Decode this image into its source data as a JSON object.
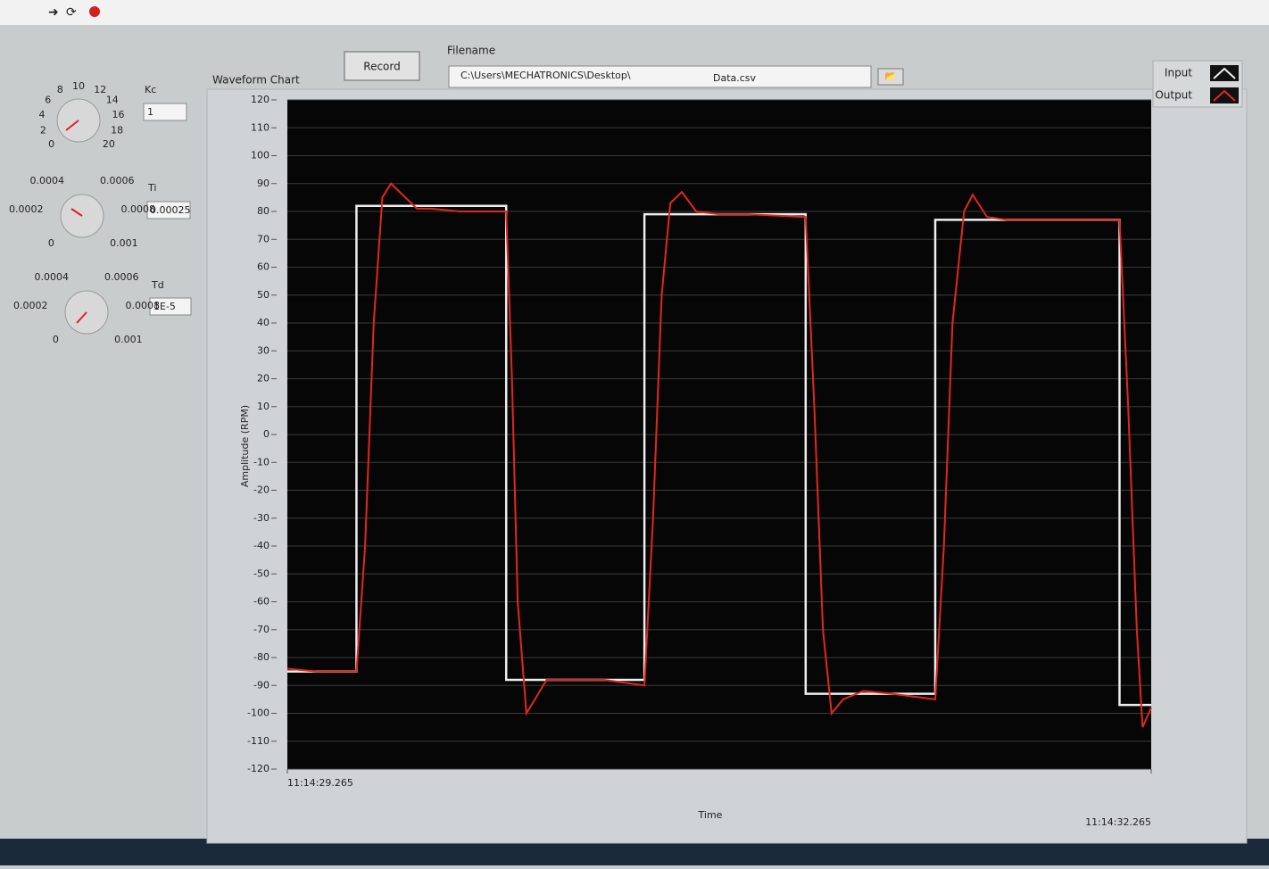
{
  "controls": {
    "kc": {
      "label": "Kc",
      "value": "1",
      "scale": [
        "0",
        "2",
        "4",
        "6",
        "8",
        "10",
        "12",
        "14",
        "16",
        "18",
        "20"
      ]
    },
    "ti": {
      "label": "Ti",
      "value": "0.00025",
      "scale": [
        "0",
        "0.0002",
        "0.0004",
        "0.0006",
        "0.0008",
        "0.001"
      ]
    },
    "td": {
      "label": "Td",
      "value": "1E-5",
      "scale": [
        "0",
        "0.0002",
        "0.0004",
        "0.0006",
        "0.0008",
        "0.001"
      ]
    },
    "record_button": "Record",
    "filename_label": "Filename",
    "filename_path": "C:\\Users\\MECHATRONICS\\Desktop\\",
    "filename_file": "Data.csv"
  },
  "chart_data": {
    "type": "line",
    "title": "Waveform Chart",
    "y_label": "Amplitude (RPM)",
    "x_label": "Time",
    "ylim": [
      -120,
      120
    ],
    "yticks": [
      120,
      110,
      100,
      90,
      80,
      70,
      60,
      50,
      40,
      30,
      20,
      10,
      0,
      -10,
      -20,
      -30,
      -40,
      -50,
      -60,
      -70,
      -80,
      -90,
      -100,
      -110,
      -120
    ],
    "xlim": [
      0,
      3
    ],
    "xticks": [
      {
        "value": 0,
        "label": "11:14:29.265"
      },
      {
        "value": 3,
        "label": "11:14:32.265"
      }
    ],
    "grid": true,
    "legend": "top-right",
    "series": [
      {
        "name": "Input",
        "color": "#eeeeee",
        "x": [
          0,
          0.24,
          0.24,
          0.76,
          0.76,
          1.24,
          1.24,
          1.8,
          1.8,
          2.25,
          2.25,
          2.89,
          2.89,
          3.0
        ],
        "values": [
          -85,
          -85,
          82,
          82,
          -88,
          -88,
          79,
          79,
          -93,
          -93,
          77,
          77,
          -97,
          -97
        ]
      },
      {
        "name": "Output",
        "color": "#e0281e",
        "x": [
          0,
          0.1,
          0.2,
          0.24,
          0.27,
          0.3,
          0.33,
          0.36,
          0.4,
          0.45,
          0.5,
          0.6,
          0.7,
          0.76,
          0.78,
          0.8,
          0.83,
          0.86,
          0.9,
          1.0,
          1.1,
          1.24,
          1.27,
          1.3,
          1.33,
          1.37,
          1.42,
          1.5,
          1.6,
          1.8,
          1.83,
          1.86,
          1.89,
          1.93,
          2.0,
          2.1,
          2.25,
          2.28,
          2.31,
          2.35,
          2.38,
          2.43,
          2.5,
          2.7,
          2.89,
          2.92,
          2.95,
          2.97,
          3.0
        ],
        "values": [
          -84,
          -85,
          -85,
          -85,
          -40,
          40,
          85,
          90,
          86,
          81,
          81,
          80,
          80,
          80,
          20,
          -60,
          -100,
          -95,
          -88,
          -88,
          -88,
          -90,
          -30,
          50,
          83,
          87,
          80,
          79,
          79,
          78,
          10,
          -70,
          -100,
          -95,
          -92,
          -93,
          -95,
          -40,
          40,
          80,
          86,
          78,
          77,
          77,
          77,
          10,
          -70,
          -105,
          -98
        ]
      }
    ]
  }
}
